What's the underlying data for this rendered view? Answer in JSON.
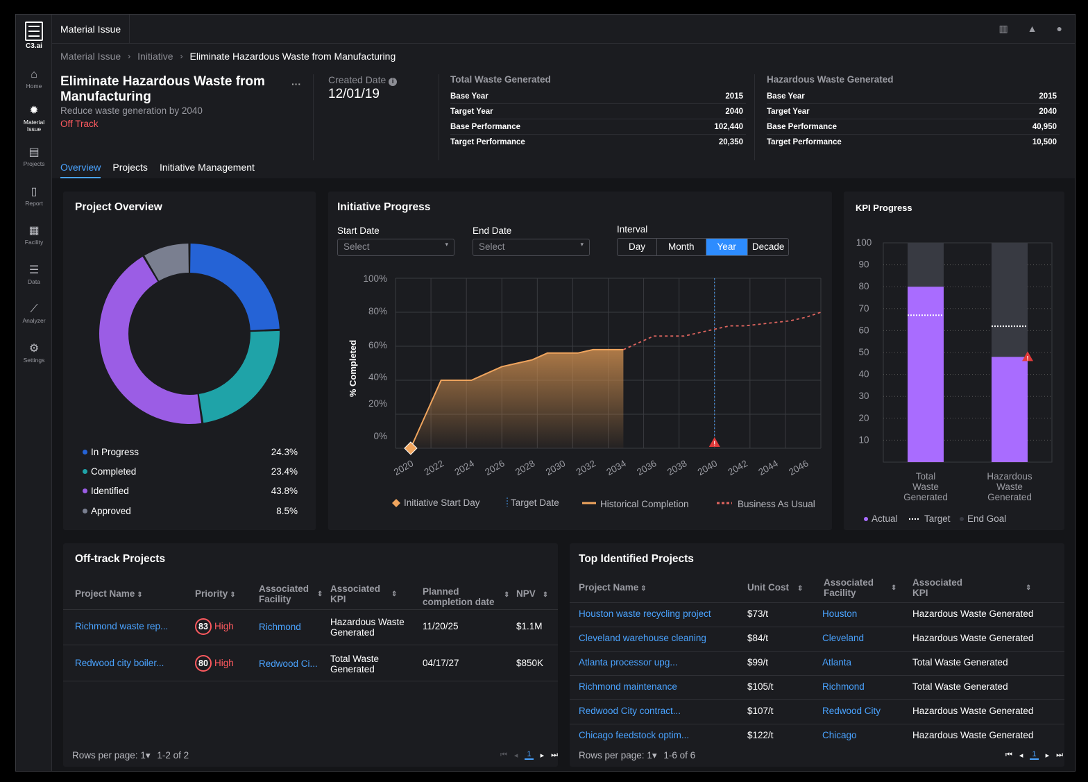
{
  "app": {
    "logo_text": "C3.ai",
    "window_tab": "Material Issue"
  },
  "nav": [
    {
      "label": "Home",
      "icon": "home-icon"
    },
    {
      "label": "Material Issue",
      "icon": "gear-icon"
    },
    {
      "label": "Projects",
      "icon": "clipboard-icon"
    },
    {
      "label": "Report",
      "icon": "document-icon"
    },
    {
      "label": "Facility",
      "icon": "building-icon"
    },
    {
      "label": "Data",
      "icon": "database-icon"
    },
    {
      "label": "Analyzer",
      "icon": "analyzer-icon"
    },
    {
      "label": "Settings",
      "icon": "settings-icon"
    }
  ],
  "nav_lines": {
    "material1": "Material",
    "material2": "Issue"
  },
  "breadcrumb": [
    "Material Issue",
    "Initiative",
    "Eliminate Hazardous Waste from Manufacturing"
  ],
  "header": {
    "title": "Eliminate Hazardous Waste from Manufacturing",
    "subtitle": "Reduce waste generation by 2040",
    "status": "Off Track",
    "created_label": "Created Date",
    "created_value": "12/01/19"
  },
  "kpi_tables": [
    {
      "heading": "Total Waste Generated",
      "rows": [
        [
          "Base Year",
          "2015"
        ],
        [
          "Target Year",
          "2040"
        ],
        [
          "Base Performance",
          "102,440"
        ],
        [
          "Target Performance",
          "20,350"
        ]
      ]
    },
    {
      "heading": "Hazardous Waste Generated",
      "rows": [
        [
          "Base Year",
          "2015"
        ],
        [
          "Target Year",
          "2040"
        ],
        [
          "Base Performance",
          "40,950"
        ],
        [
          "Target Performance",
          "10,500"
        ]
      ]
    }
  ],
  "tabs": [
    "Overview",
    "Projects",
    "Initiative Management"
  ],
  "project_overview": {
    "title": "Project Overview",
    "items": [
      {
        "label": "In Progress",
        "value": "24.3%",
        "pct": 24.3,
        "color": "#2563d6"
      },
      {
        "label": "Completed",
        "value": "23.4%",
        "pct": 23.4,
        "color": "#1fa3a8"
      },
      {
        "label": "Identified",
        "value": "43.8%",
        "pct": 43.8,
        "color": "#9b5de5"
      },
      {
        "label": "Approved",
        "value": "8.5%",
        "pct": 8.5,
        "color": "#7a7f90"
      }
    ]
  },
  "initiative_progress": {
    "title": "Initiative Progress",
    "start_label": "Start Date",
    "start_placeholder": "Select",
    "end_label": "End Date",
    "end_placeholder": "Select",
    "interval_label": "Interval",
    "intervals": [
      "Day",
      "Month",
      "Year",
      "Decade"
    ],
    "selected_interval": "Year"
  },
  "chart_data": [
    {
      "type": "area",
      "ylabel": "% Completed",
      "y_ticks": [
        "100%",
        "80%",
        "60%",
        "40%",
        "20%",
        "0%"
      ],
      "x_ticks": [
        "2020",
        "2022",
        "2024",
        "2026",
        "2028",
        "2030",
        "2032",
        "2034",
        "2036",
        "2038",
        "2040",
        "2042",
        "2044",
        "2046"
      ],
      "xlim": [
        2019,
        2047
      ],
      "ylim": [
        0,
        100
      ],
      "series": [
        {
          "name": "Historical Completion",
          "x": [
            2020,
            2021,
            2022,
            2023,
            2024,
            2025,
            2026,
            2027,
            2028,
            2029,
            2030,
            2031,
            2032,
            2033,
            2034
          ],
          "y": [
            0,
            20,
            40,
            40,
            40,
            44,
            48,
            50,
            52,
            56,
            56,
            56,
            58,
            58,
            58
          ]
        },
        {
          "name": "Business As Usual",
          "x": [
            2034,
            2035,
            2036,
            2037,
            2038,
            2039,
            2040,
            2041,
            2042,
            2043,
            2044,
            2045,
            2046,
            2047
          ],
          "y": [
            58,
            62,
            66,
            66,
            66,
            68,
            70,
            72,
            72,
            73,
            74,
            75,
            77,
            80
          ]
        }
      ],
      "markers": [
        {
          "name": "Initiative Start Day",
          "x": 2020,
          "y": 0
        },
        {
          "name": "Target Date",
          "x": 2040
        }
      ],
      "legend": [
        "Initiative Start Day",
        "Target Date",
        "Historical Completion",
        "Business As Usual"
      ]
    },
    {
      "type": "bar",
      "title": "KPI Progress",
      "categories": [
        "Total Waste Generated",
        "Hazardous Waste Generated"
      ],
      "ylim": [
        0,
        100
      ],
      "y_ticks": [
        "100",
        "90",
        "80",
        "70",
        "60",
        "50",
        "40",
        "30",
        "20",
        "10"
      ],
      "series": [
        {
          "name": "Actual",
          "values": [
            80,
            48
          ]
        },
        {
          "name": "Target",
          "values": [
            67,
            62
          ]
        },
        {
          "name": "End Goal",
          "values": [
            100,
            100
          ]
        }
      ],
      "warning_marker": {
        "category": "Hazardous Waste Generated",
        "value": 48
      },
      "legend": [
        "Actual",
        "Target",
        "End Goal"
      ]
    }
  ],
  "kpi_labels": {
    "c1": [
      "Total",
      "Waste",
      "Generated"
    ],
    "c2": [
      "Hazardous",
      "Waste",
      "Generated"
    ]
  },
  "offtrack": {
    "title": "Off-track Projects",
    "headers": {
      "name": "Project Name",
      "priority": "Priority",
      "facility1": "Associated",
      "facility2": "Facility",
      "kpi1": "Associated",
      "kpi2": "KPI",
      "planned1": "Planned",
      "planned2": "completion date",
      "npv": "NPV"
    },
    "rows": [
      {
        "name": "Richmond waste rep...",
        "score": "83",
        "priority": "High",
        "facility": "Richmond",
        "kpi1": "Hazardous Waste",
        "kpi2": "Generated",
        "date": "11/20/25",
        "npv": "$1.1M"
      },
      {
        "name": "Redwood city boiler...",
        "score": "80",
        "priority": "High",
        "facility": "Redwood Ci...",
        "kpi1": "Total Waste",
        "kpi2": "Generated",
        "date": "04/17/27",
        "npv": "$850K"
      }
    ],
    "rows_per_page_label": "Rows per page:",
    "rows_per_page": "1",
    "range": "1-2 of 2",
    "page": "1"
  },
  "top_projects": {
    "title": "Top Identified Projects",
    "headers": {
      "name": "Project Name",
      "cost": "Unit Cost",
      "facility1": "Associated",
      "facility2": "Facility",
      "kpi1": "Associated",
      "kpi2": "KPI"
    },
    "rows": [
      {
        "name": "Houston waste recycling project",
        "cost": "$73/t",
        "facility": "Houston",
        "kpi": "Hazardous Waste Generated"
      },
      {
        "name": "Cleveland warehouse cleaning",
        "cost": "$84/t",
        "facility": "Cleveland",
        "kpi": "Hazardous Waste Generated"
      },
      {
        "name": "Atlanta processor upg...",
        "cost": "$99/t",
        "facility": "Atlanta",
        "kpi": "Total Waste Generated"
      },
      {
        "name": "Richmond maintenance",
        "cost": "$105/t",
        "facility": "Richmond",
        "kpi": "Total Waste Generated"
      },
      {
        "name": "Redwood City contract...",
        "cost": "$107/t",
        "facility": "Redwood City",
        "kpi": "Hazardous Waste Generated"
      },
      {
        "name": "Chicago feedstock optim...",
        "cost": "$122/t",
        "facility": "Chicago",
        "kpi": "Hazardous Waste Generated"
      }
    ],
    "rows_per_page_label": "Rows per page:",
    "rows_per_page": "1",
    "range": "1-6 of 6",
    "page": "1"
  },
  "colors": {
    "accent": "#4aa3ff",
    "danger": "#ff5a5f",
    "actual": "#a96cff",
    "area": "#e59b56"
  }
}
